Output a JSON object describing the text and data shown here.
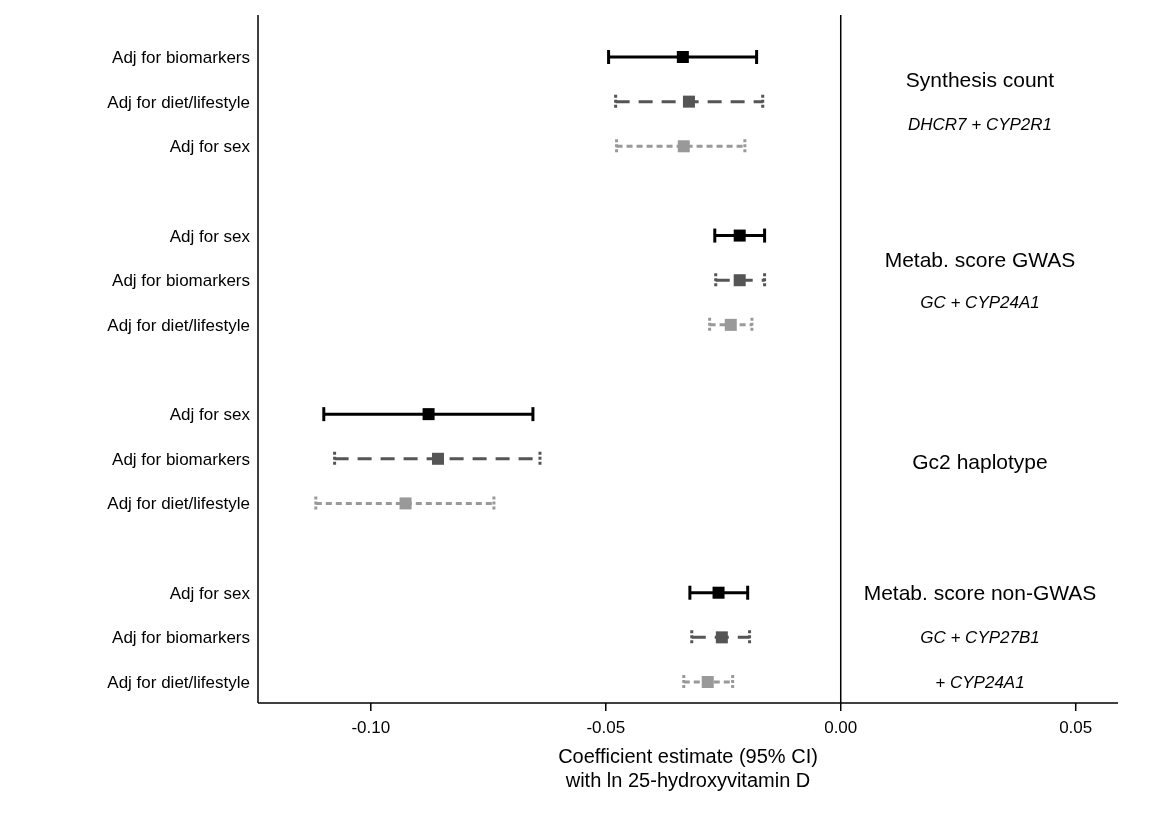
{
  "chart_data": {
    "type": "scatter",
    "orientation": "horizontal",
    "marker": "square",
    "categories": [
      "Adj for biomarkers",
      "Adj for diet/lifestyle",
      "Adj for sex",
      null,
      "Adj for sex",
      "Adj for biomarkers",
      "Adj for diet/lifestyle",
      null,
      "Adj for sex",
      "Adj for biomarkers",
      "Adj for diet/lifestyle",
      null,
      "Adj for sex",
      "Adj for biomarkers",
      "Adj for diet/lifestyle"
    ],
    "series": [
      {
        "color": "#000000",
        "line_style": "solid",
        "values": [
          -0.0336,
          null,
          null,
          null,
          -0.0215,
          null,
          null,
          null,
          -0.0877,
          null,
          null,
          null,
          -0.026,
          null,
          null
        ],
        "errors": [
          [
            -0.0494,
            -0.0179
          ],
          null,
          null,
          null,
          [
            -0.0268,
            -0.0162
          ],
          null,
          null,
          null,
          [
            -0.11,
            -0.0655
          ],
          null,
          null,
          null,
          [
            -0.0321,
            -0.0198
          ],
          null,
          null
        ]
      },
      {
        "color": "#555555",
        "line_style": "dashed",
        "values": [
          null,
          -0.0323,
          null,
          null,
          null,
          -0.0215,
          null,
          null,
          null,
          -0.0857,
          null,
          null,
          null,
          -0.0253,
          null
        ],
        "errors": [
          null,
          [
            -0.0479,
            -0.0166
          ],
          null,
          null,
          null,
          [
            -0.0266,
            -0.0162
          ],
          null,
          null,
          null,
          [
            -0.1077,
            -0.064
          ],
          null,
          null,
          null,
          [
            -0.0317,
            -0.0194
          ],
          null
        ]
      },
      {
        "color": "#999999",
        "line_style": "dotted",
        "values": [
          null,
          null,
          -0.0334,
          null,
          null,
          null,
          -0.0234,
          null,
          null,
          null,
          -0.0926,
          null,
          null,
          null,
          -0.0283
        ],
        "errors": [
          null,
          null,
          [
            -0.0477,
            -0.0204
          ],
          null,
          null,
          null,
          [
            -0.0279,
            -0.0189
          ],
          null,
          null,
          null,
          [
            -0.1117,
            -0.0738
          ],
          null,
          null,
          null,
          [
            -0.0334,
            -0.023
          ]
        ]
      }
    ],
    "xlim": [
      -0.124,
      0.059
    ],
    "xticks": [
      {
        "value": -0.1,
        "label": "-0.10"
      },
      -0.05,
      {
        "value": 0,
        "label": "0.00"
      },
      0.05
    ],
    "xlabel": "Coefficient estimate (95% CI)\nwith ln 25-hydroxyvitamin D",
    "ref_lines": [
      {
        "axis": "x",
        "value": 0,
        "color": "#000000"
      }
    ],
    "annotations": [
      "Synthesis count",
      "DHCR7 + CYP2R1",
      "Metab. score GWAS",
      "GC + CYP24A1",
      "Gc2 haplotype",
      "Metab. score non-GWAS",
      "GC + CYP27B1",
      "+ CYP24A1"
    ],
    "grid": false
  }
}
